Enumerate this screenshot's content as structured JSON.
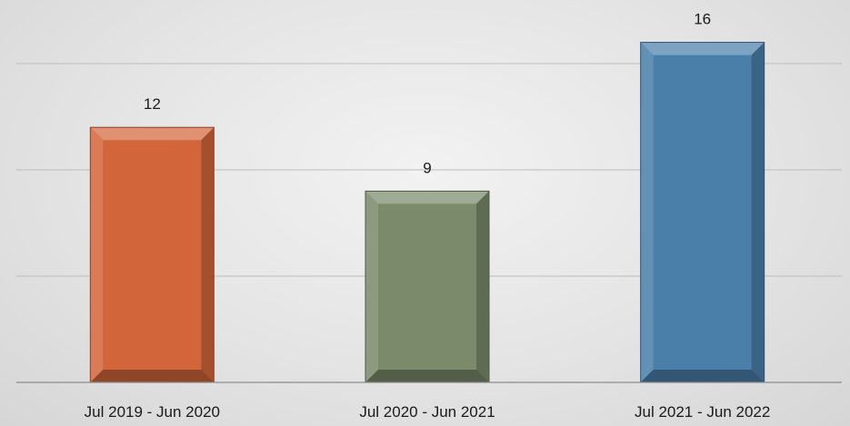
{
  "chart_data": {
    "type": "bar",
    "categories": [
      "Jul 2019 - Jun 2020",
      "Jul 2020 - Jun 2021",
      "Jul 2021 - Jun 2022"
    ],
    "values": [
      12,
      9,
      16
    ],
    "data_labels": [
      "12",
      "9",
      "16"
    ],
    "bar_colors": [
      "#d2663a",
      "#7a8a6a",
      "#4a7faa"
    ],
    "title": "",
    "xlabel": "",
    "ylabel": "",
    "ylim": [
      0,
      15
    ],
    "gridlines": [
      5,
      10,
      15
    ],
    "grid": true,
    "legend": "none",
    "y_tick_labels_shown": false
  }
}
